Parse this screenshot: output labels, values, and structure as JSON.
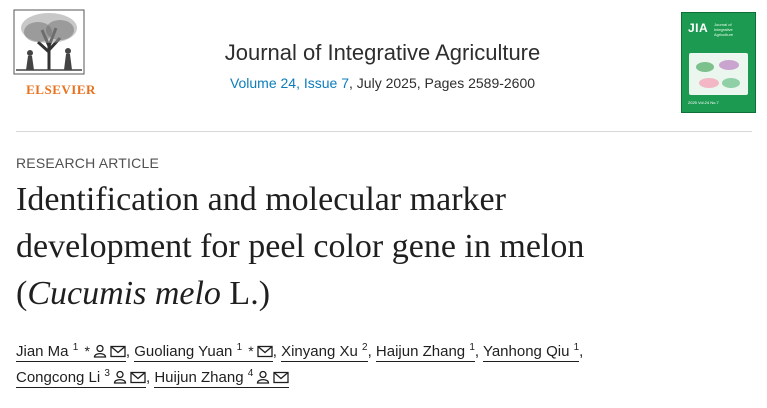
{
  "publisher": {
    "name": "ELSEVIER"
  },
  "journal": {
    "title": "Journal of Integrative Agriculture",
    "volume_issue": "Volume 24, Issue 7",
    "date_pages": ", July 2025, Pages 2589-2600",
    "cover": {
      "abbr": "JIA",
      "name": "Journal of Integrative Agriculture",
      "footer": "2025 Vol.24 No.7"
    }
  },
  "article": {
    "type": "RESEARCH ARTICLE",
    "title_line1": "Identification and molecular marker",
    "title_line2": "development for peel color gene in melon",
    "title_paren_open": "(",
    "title_species": "Cucumis melo",
    "title_suffix": " L.)"
  },
  "authors": [
    {
      "name": "Jian Ma",
      "sup": "1",
      "star": "*"
    },
    {
      "name": "Guoliang Yuan",
      "sup": "1",
      "star": "*"
    },
    {
      "name": "Xinyang Xu",
      "sup": "2"
    },
    {
      "name": "Haijun Zhang",
      "sup": "1"
    },
    {
      "name": "Yanhong Qiu",
      "sup": "1"
    },
    {
      "name": "Congcong Li",
      "sup": "3"
    },
    {
      "name": "Huijun Zhang",
      "sup": "4"
    }
  ],
  "separator": ", ",
  "icons": {
    "person": "person-icon",
    "email": "envelope-icon"
  },
  "colors": {
    "publisher": "#e9711c",
    "link": "#0c7dbb",
    "cover": "#1d9a52"
  }
}
